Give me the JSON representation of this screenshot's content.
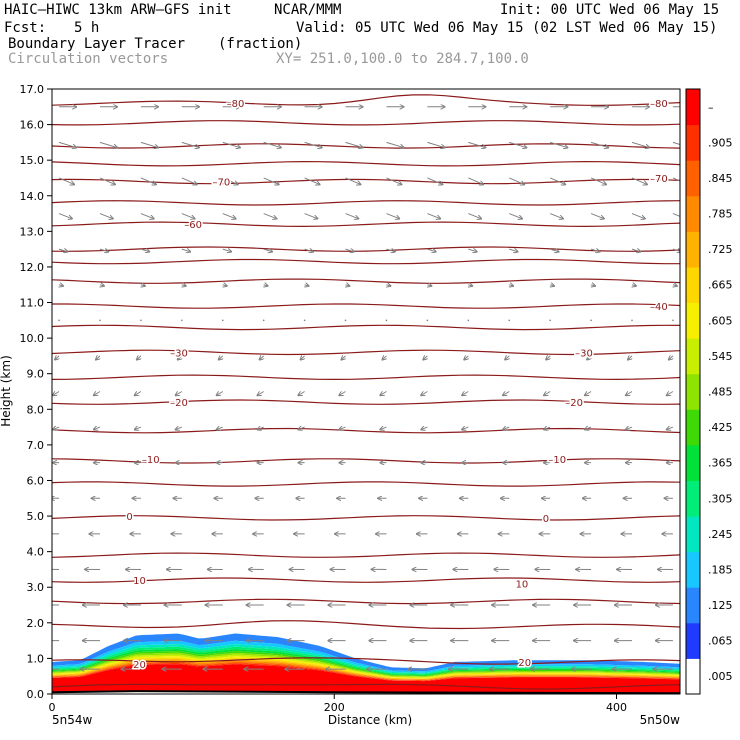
{
  "header": {
    "model": "HAIC–HIWC 13km ARW–GFS init",
    "org": "NCAR/MMM",
    "init": "Init: 00 UTC Wed 06 May 15",
    "fcst_label": "Fcst:",
    "fcst_value": "5 h",
    "valid": "Valid: 05 UTC Wed 06 May 15 (02 LST Wed 06 May 15)",
    "field_name": "Boundary Layer Tracer",
    "field_units": "(fraction)",
    "overlay_name": "Circulation vectors",
    "xy_range": "XY= 251.0,100.0 to 284.7,100.0"
  },
  "axes": {
    "ylabel": "Height (km)",
    "xlabel": "Distance (km)",
    "left_coord": "5n54w",
    "right_coord": "5n50w"
  },
  "colors": {
    "contour": "#8b1a1a",
    "vector": "#808080",
    "terrain": "#000000",
    "cb_edge": "#000000"
  },
  "chart_data": {
    "type": "heatmap",
    "title": "Boundary Layer Tracer",
    "units": "(fraction)",
    "xlabel": "Distance (km)",
    "ylabel": "Height (km)",
    "xlim": [
      0,
      445
    ],
    "ylim": [
      0,
      17
    ],
    "x_ticks": [
      0,
      200,
      400
    ],
    "y_ticks": [
      "0.0",
      "1.0",
      "2.0",
      "3.0",
      "4.0",
      "5.0",
      "6.0",
      "7.0",
      "8.0",
      "9.0",
      "10.0",
      "11.0",
      "12.0",
      "13.0",
      "14.0",
      "15.0",
      "16.0",
      "17.0"
    ],
    "colorbar_levels": [
      ".005",
      ".065",
      ".125",
      ".185",
      ".245",
      ".305",
      ".365",
      ".425",
      ".485",
      ".545",
      ".605",
      ".665",
      ".725",
      ".785",
      ".845",
      ".905",
      "–"
    ],
    "colorbar_colors": [
      "#ffffff",
      "#1f3bff",
      "#2a86ff",
      "#16c8ff",
      "#00e7c2",
      "#00ee77",
      "#00e23a",
      "#3fda05",
      "#8ee400",
      "#c8ee00",
      "#f6f000",
      "#ffd700",
      "#ffb200",
      "#ff8a00",
      "#ff6000",
      "#ff3000",
      "#ff0000"
    ],
    "isotherm_labels": [
      {
        "value": "–80",
        "x": 130,
        "y": 16.6
      },
      {
        "value": "–80",
        "x": 430,
        "y": 16.6
      },
      {
        "value": "–70",
        "x": 120,
        "y": 14.4
      },
      {
        "value": "–70",
        "x": 430,
        "y": 14.5
      },
      {
        "value": "–60",
        "x": 100,
        "y": 13.2
      },
      {
        "value": "–40",
        "x": 430,
        "y": 10.9
      },
      {
        "value": "–30",
        "x": 90,
        "y": 9.6
      },
      {
        "value": "–30",
        "x": 377,
        "y": 9.6
      },
      {
        "value": "–20",
        "x": 90,
        "y": 8.2
      },
      {
        "value": "–20",
        "x": 370,
        "y": 8.2
      },
      {
        "value": "–10",
        "x": 70,
        "y": 6.6
      },
      {
        "value": "–10",
        "x": 358,
        "y": 6.6
      },
      {
        "value": "0",
        "x": 55,
        "y": 5.0
      },
      {
        "value": "0",
        "x": 350,
        "y": 4.95
      },
      {
        "value": "10",
        "x": 62,
        "y": 3.2
      },
      {
        "value": "10",
        "x": 333,
        "y": 3.1
      },
      {
        "value": "20",
        "x": 62,
        "y": 0.85
      },
      {
        "value": "20",
        "x": 335,
        "y": 0.9
      }
    ],
    "isotherm_heights_km": [
      0.2,
      0.9,
      1.9,
      2.6,
      3.2,
      3.9,
      4.95,
      5.9,
      6.55,
      7.4,
      8.2,
      8.9,
      9.6,
      10.3,
      10.9,
      11.6,
      12.15,
      12.5,
      13.2,
      13.8,
      14.4,
      14.9,
      15.4,
      16.05,
      16.6
    ],
    "tracer_top_km": [
      {
        "x": 0,
        "y": 0.9
      },
      {
        "x": 20,
        "y": 0.95
      },
      {
        "x": 40,
        "y": 1.35
      },
      {
        "x": 60,
        "y": 1.65
      },
      {
        "x": 90,
        "y": 1.7
      },
      {
        "x": 105,
        "y": 1.55
      },
      {
        "x": 130,
        "y": 1.7
      },
      {
        "x": 160,
        "y": 1.6
      },
      {
        "x": 190,
        "y": 1.35
      },
      {
        "x": 215,
        "y": 1.0
      },
      {
        "x": 240,
        "y": 0.75
      },
      {
        "x": 265,
        "y": 0.72
      },
      {
        "x": 285,
        "y": 0.9
      },
      {
        "x": 330,
        "y": 0.95
      },
      {
        "x": 380,
        "y": 0.95
      },
      {
        "x": 420,
        "y": 0.9
      },
      {
        "x": 445,
        "y": 0.85
      }
    ],
    "terrain_km": [
      {
        "x": 0,
        "y": 0.05
      },
      {
        "x": 60,
        "y": 0.08
      },
      {
        "x": 200,
        "y": 0.05
      },
      {
        "x": 445,
        "y": 0.02
      }
    ],
    "circulation_vectors": [
      {
        "z_km": 16.5,
        "u": 8,
        "w": 0
      },
      {
        "z_km": 15.5,
        "u": 8,
        "w": -0.4
      },
      {
        "z_km": 14.5,
        "u": 7,
        "w": -0.5
      },
      {
        "z_km": 13.5,
        "u": 6,
        "w": -0.4
      },
      {
        "z_km": 12.5,
        "u": 4,
        "w": -0.2
      },
      {
        "z_km": 11.5,
        "u": 2,
        "w": -0.1
      },
      {
        "z_km": 10.5,
        "u": 0,
        "w": -0.3
      },
      {
        "z_km": 9.5,
        "u": -2,
        "w": -0.3
      },
      {
        "z_km": 8.5,
        "u": -3,
        "w": -0.3
      },
      {
        "z_km": 7.5,
        "u": -3,
        "w": -0.2
      },
      {
        "z_km": 6.5,
        "u": -3,
        "w": 0
      },
      {
        "z_km": 5.5,
        "u": -4,
        "w": 0
      },
      {
        "z_km": 4.5,
        "u": -5,
        "w": 0
      },
      {
        "z_km": 3.5,
        "u": -7,
        "w": 0
      },
      {
        "z_km": 2.5,
        "u": -8,
        "w": 0
      },
      {
        "z_km": 1.5,
        "u": -8,
        "w": 0
      },
      {
        "z_km": 0.7,
        "u": -9,
        "w": 0
      }
    ]
  }
}
